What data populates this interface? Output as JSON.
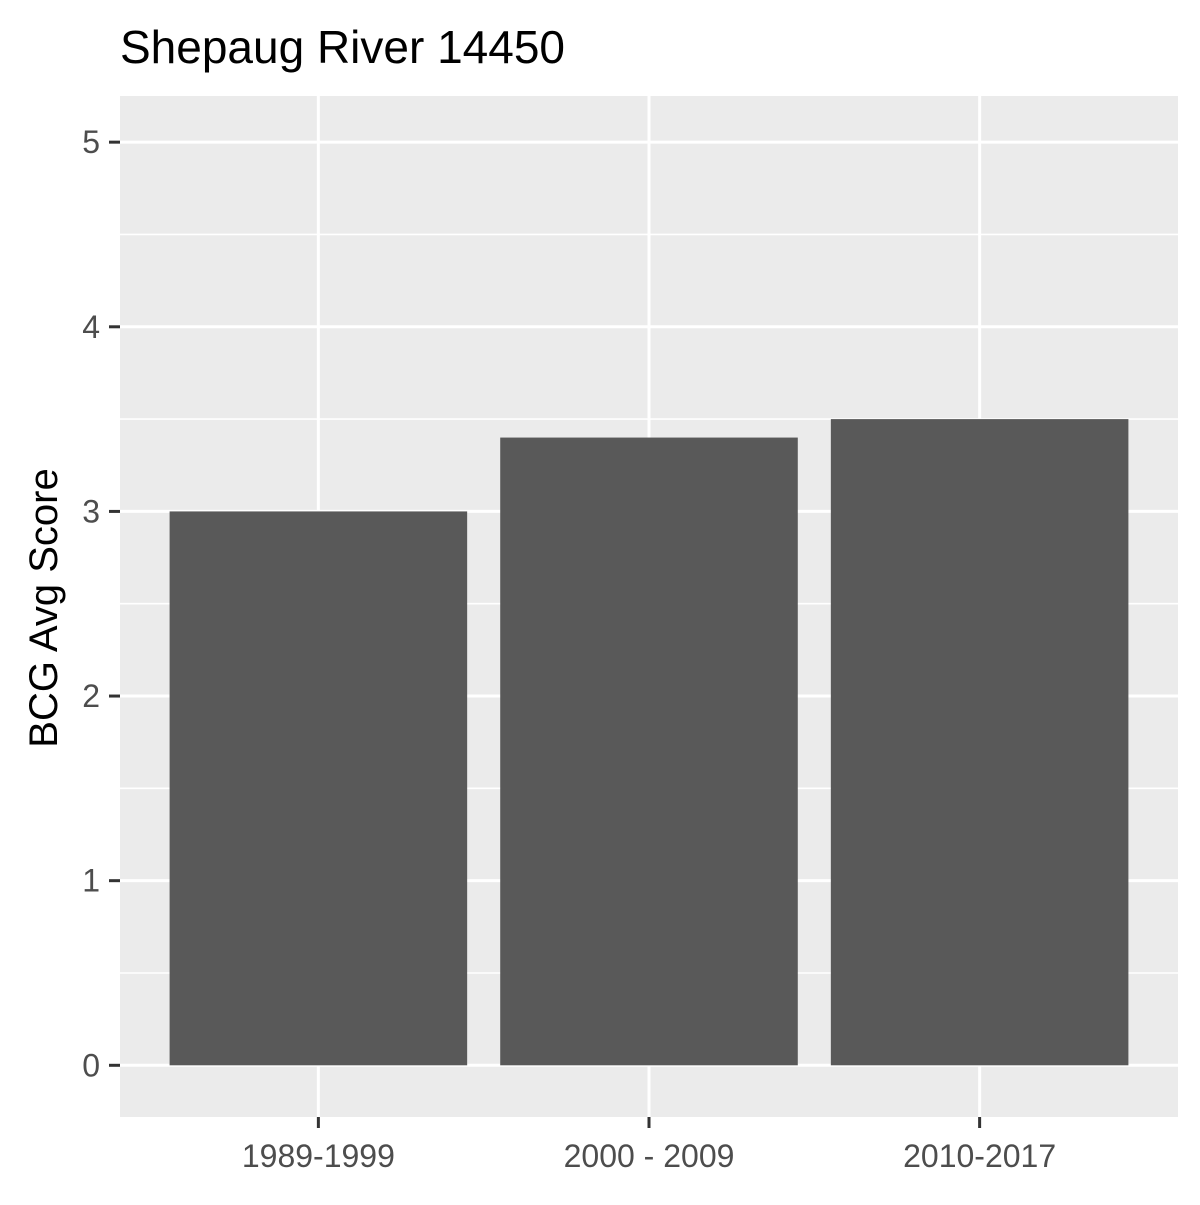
{
  "chart_data": {
    "type": "bar",
    "title": "Shepaug River 14450",
    "xlabel": "",
    "ylabel": "BCG Avg Score",
    "categories": [
      "1989-1999",
      "2000 - 2009",
      "2010-2017"
    ],
    "values": [
      3.0,
      3.4,
      3.5
    ],
    "ylim": [
      -0.28,
      5.25
    ],
    "yticks": [
      0,
      1,
      2,
      3,
      4,
      5
    ],
    "ytick_labels": [
      "0",
      "1",
      "2",
      "3",
      "4",
      "5"
    ],
    "grid": true,
    "legend": "none",
    "colors": {
      "bar": "#595959",
      "panel": "#ebebeb",
      "grid": "#ffffff",
      "tick": "#333333",
      "tick_label": "#4d4d4d",
      "text": "#000000"
    }
  }
}
